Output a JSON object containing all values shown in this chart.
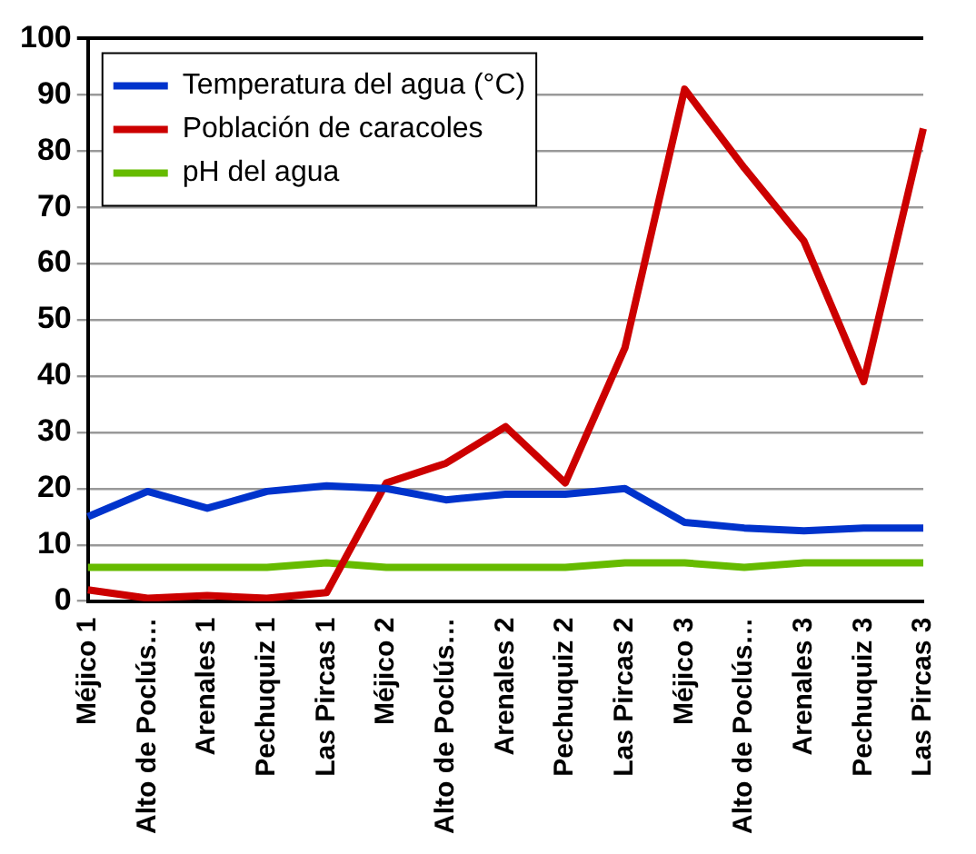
{
  "chart_data": {
    "type": "line",
    "categories": [
      "Méjico 1",
      "Alto de Poclús…",
      "Arenales 1",
      "Pechuquiz 1",
      "Las Pircas 1",
      "Méjico 2",
      "Alto de Poclús…",
      "Arenales 2",
      "Pechuquiz 2",
      "Las Pircas 2",
      "Méjico 3",
      "Alto de Poclús…",
      "Arenales 3",
      "Pechuquiz 3",
      "Las Pircas 3"
    ],
    "series": [
      {
        "name": "Temperatura del agua (°C)",
        "color": "#0033cc",
        "values": [
          15,
          19.5,
          16.5,
          19.5,
          20.5,
          20,
          18,
          19,
          19,
          20,
          14,
          13,
          12.5,
          13,
          13
        ]
      },
      {
        "name": "Población de caracoles",
        "color": "#cc0000",
        "values": [
          2,
          0.5,
          1,
          0.5,
          1.5,
          21,
          24.5,
          31,
          21,
          45,
          91,
          77,
          64,
          39,
          84
        ]
      },
      {
        "name": "pH del agua",
        "color": "#66bb00",
        "values": [
          6,
          6,
          6,
          6,
          6.8,
          6,
          6,
          6,
          6,
          6.8,
          6.8,
          6,
          6.8,
          6.8,
          6.8
        ]
      }
    ],
    "ylim": [
      0,
      100
    ],
    "yticks": [
      0,
      10,
      20,
      30,
      40,
      50,
      60,
      70,
      80,
      90,
      100
    ],
    "grid": "y",
    "legend": "top left",
    "marker": "none",
    "line_style": "solid"
  }
}
